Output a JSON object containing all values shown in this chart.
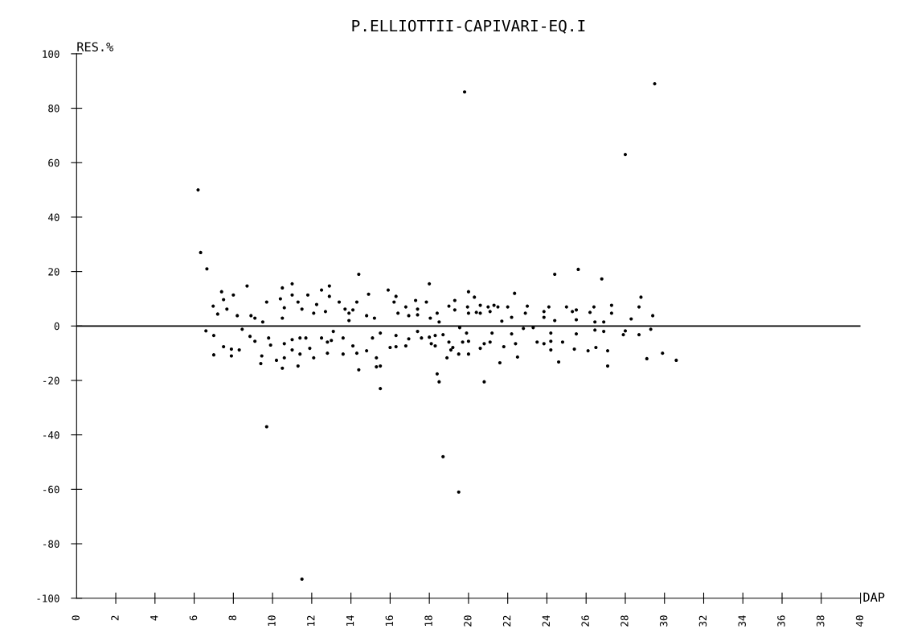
{
  "chart_data": {
    "type": "scatter",
    "title": "P.ELLIOTTII-CAPIVARI-EQ.I",
    "xlabel": "DAP",
    "ylabel": "RES.%",
    "xlim": [
      0,
      40
    ],
    "ylim": [
      -100,
      100
    ],
    "xticks": [
      0,
      2,
      4,
      6,
      8,
      10,
      12,
      14,
      16,
      18,
      20,
      22,
      24,
      26,
      28,
      30,
      32,
      34,
      36,
      38,
      40
    ],
    "yticks": [
      -100,
      -80,
      -60,
      -40,
      -20,
      0,
      20,
      40,
      60,
      80,
      100
    ],
    "grid": false,
    "marker": "circle",
    "ref_lines": [
      {
        "axis": "y",
        "value": 0,
        "color": "#000000"
      }
    ],
    "series": [
      {
        "color": "#000000",
        "x": [
          6.2,
          9.7,
          11.5,
          18.7,
          19.8,
          19.5,
          29.5,
          28.0,
          14.4,
          6.33,
          6.65,
          7.4,
          7.5,
          6.97,
          7.2,
          8.0,
          8.7,
          7.67,
          8.2,
          6.6,
          7.0,
          7.5,
          7.0,
          7.9,
          7.9,
          8.3,
          8.45,
          8.85,
          9.1,
          8.9,
          9.1,
          9.7,
          9.9,
          9.45,
          9.4,
          9.5,
          9.8,
          10.2,
          10.5,
          10.5,
          10.4,
          11.0,
          11.0,
          10.6,
          10.5,
          10.6,
          11.0,
          11.0,
          10.6,
          11.3,
          11.5,
          11.4,
          11.4,
          11.3,
          11.8,
          11.7,
          11.9,
          12.1,
          12.1,
          12.25,
          12.5,
          12.9,
          12.7,
          12.9,
          12.5,
          12.8,
          12.8,
          13.0,
          13.1,
          13.4,
          13.6,
          13.7,
          13.9,
          13.9,
          14.1,
          14.3,
          14.9,
          14.8,
          14.3,
          14.4,
          14.8,
          13.6,
          14.1,
          15.3,
          15.3,
          15.5,
          15.5,
          15.1,
          15.5,
          15.2,
          15.9,
          16.2,
          16.3,
          16.8,
          16.4,
          16.95,
          17.3,
          16.0,
          16.3,
          16.8,
          16.3,
          16.95,
          17.4,
          17.6,
          18.0,
          17.85,
          17.4,
          17.4,
          18.05,
          18.5,
          18.0,
          18.1,
          18.3,
          18.3,
          18.7,
          19.0,
          18.9,
          18.4,
          18.5,
          18.4,
          19.0,
          19.3,
          19.3,
          19.1,
          19.2,
          19.5,
          19.55,
          19.7,
          19.9,
          19.95,
          20.0,
          20.0,
          20.3,
          20.4,
          20.6,
          20.6,
          20.0,
          20.0,
          20.6,
          20.8,
          20.8,
          21.0,
          21.1,
          21.3,
          21.5,
          21.2,
          21.1,
          21.6,
          21.7,
          21.8,
          22.0,
          22.35,
          22.2,
          22.2,
          22.4,
          22.5,
          22.8,
          22.9,
          23.0,
          23.3,
          23.5,
          23.85,
          23.85,
          23.85,
          24.1,
          24.2,
          24.2,
          24.2,
          24.4,
          24.4,
          24.6,
          24.8,
          25.0,
          25.3,
          25.5,
          25.5,
          25.5,
          25.4,
          25.6,
          26.1,
          26.2,
          26.4,
          26.45,
          26.45,
          26.5,
          26.8,
          26.9,
          26.9,
          27.1,
          27.1,
          27.3,
          27.3,
          27.9,
          28.0,
          28.3,
          28.7,
          28.8,
          28.7,
          29.1,
          29.4,
          29.3,
          29.9,
          30.6
        ],
        "values": [
          50,
          -37,
          -93,
          -48,
          86,
          -61,
          89,
          63,
          19,
          27,
          21,
          12.6,
          9.7,
          7.3,
          4.4,
          11.4,
          14.7,
          6.2,
          3.8,
          -1.8,
          -3.5,
          -7.6,
          -10.6,
          -8.5,
          -11,
          -8.8,
          -1.2,
          -3.8,
          -5.6,
          3.8,
          2.9,
          8.8,
          -7,
          -11,
          -13.8,
          1.5,
          -4.4,
          -12.6,
          -15.5,
          14,
          10,
          11.4,
          15.5,
          6.7,
          2.9,
          -6.5,
          -8.8,
          -5,
          -11.7,
          8.8,
          6.2,
          -4.4,
          -10.3,
          -14.7,
          11.4,
          -4.4,
          -8.2,
          -11.7,
          4.7,
          7.9,
          13.2,
          14.7,
          5.3,
          10.9,
          -4.4,
          -5.9,
          -10,
          -5.3,
          -2,
          8.8,
          -4.4,
          6.2,
          4.7,
          2,
          5.9,
          8.8,
          11.7,
          3.8,
          -10,
          -16.1,
          -9.1,
          -10.3,
          -7.3,
          -11.7,
          -15,
          -14.7,
          -23,
          -4.4,
          -2.6,
          2.9,
          13.2,
          8.8,
          10.9,
          7,
          4.7,
          3.8,
          9.4,
          -7.9,
          -7.6,
          -7.3,
          -3.5,
          -4.7,
          -2,
          -4.4,
          15.5,
          8.8,
          6.2,
          4.1,
          2.9,
          1.5,
          -4.1,
          -6.5,
          -7.3,
          -3.5,
          -3.2,
          -5.9,
          -11.7,
          -17.6,
          -20.5,
          4.7,
          7.3,
          5.9,
          9.4,
          -8.8,
          -7.9,
          -10.3,
          -0.6,
          -5.9,
          -2.6,
          7,
          4.7,
          12.6,
          10.6,
          5,
          7.6,
          4.7,
          -10.3,
          -5.6,
          -8.2,
          -6.5,
          -20.5,
          7,
          5.3,
          7.6,
          7,
          -2.6,
          -5.9,
          -13.5,
          1.8,
          -7.6,
          7,
          12,
          3.2,
          -2.9,
          -6.5,
          -11.4,
          -0.9,
          4.7,
          7.3,
          -0.6,
          -5.9,
          5.3,
          3.2,
          -6.5,
          7,
          -8.8,
          -2.6,
          -5.6,
          19,
          2,
          -13.2,
          -5.9,
          7,
          5.3,
          5.9,
          2.3,
          -2.9,
          -8.5,
          20.8,
          -9.1,
          5,
          7,
          1.5,
          -1.5,
          -7.9,
          17.3,
          1.5,
          -2,
          -9.1,
          -14.7,
          7.6,
          4.7,
          -3.2,
          -1.8,
          2.6,
          7,
          10.6,
          -3.2,
          -12,
          3.8,
          -1.2,
          -10,
          -12.6
        ]
      }
    ]
  }
}
